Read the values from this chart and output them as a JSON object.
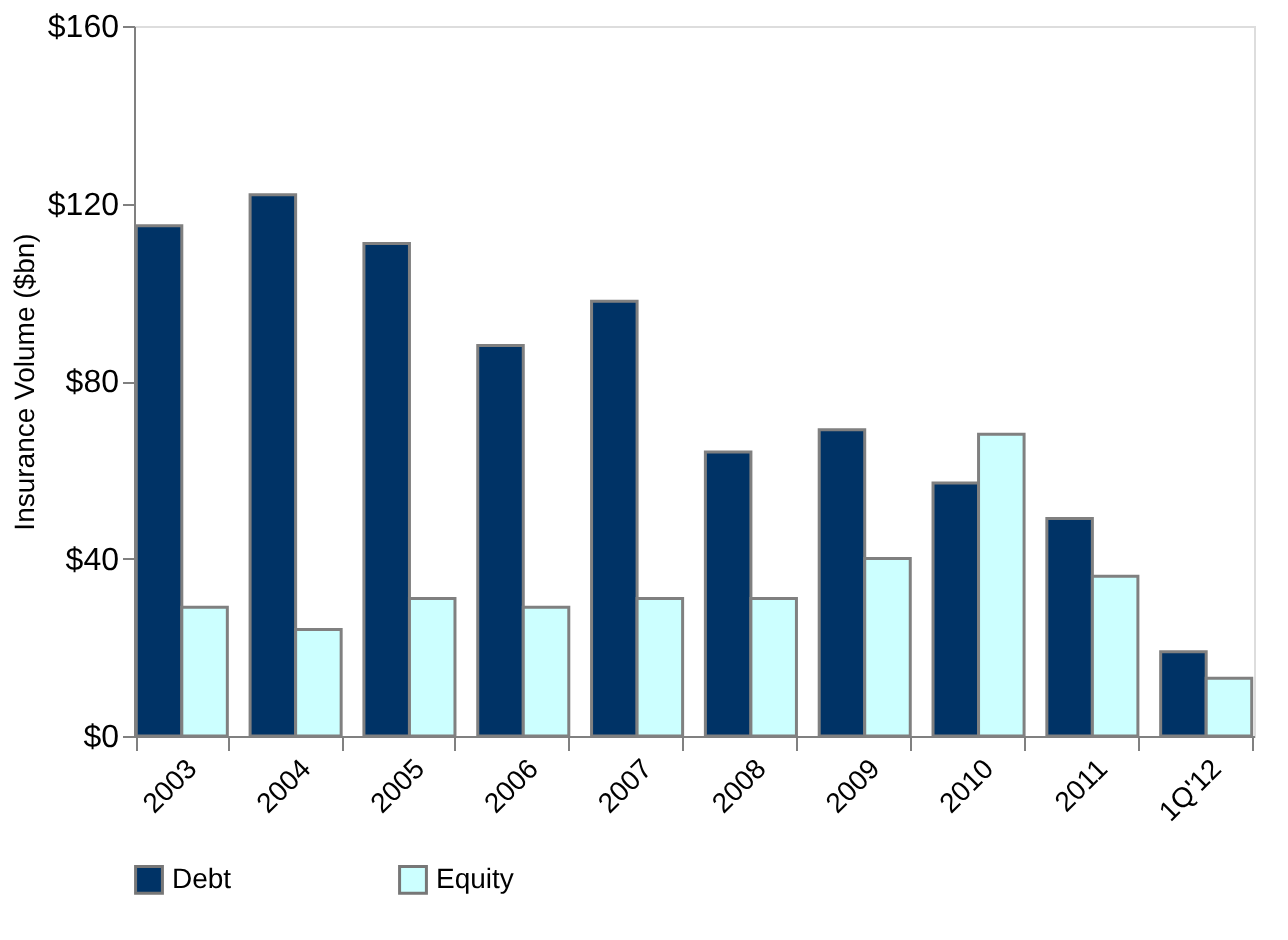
{
  "chart_data": {
    "type": "bar",
    "ylabel": "Insurance Volume ($bn)",
    "categories": [
      "2003",
      "2004",
      "2005",
      "2006",
      "2007",
      "2008",
      "2009",
      "2010",
      "2011",
      "1Q'12"
    ],
    "series": [
      {
        "name": "Debt",
        "color": "#003366",
        "values": [
          115,
          122,
          111,
          88,
          98,
          64,
          69,
          57,
          49,
          19
        ]
      },
      {
        "name": "Equity",
        "color": "#ccffff",
        "values": [
          29,
          24,
          31,
          29,
          31,
          31,
          40,
          68,
          36,
          13
        ]
      }
    ],
    "ylim": [
      0,
      160
    ],
    "yticks": [
      {
        "value": 0,
        "label": "$0"
      },
      {
        "value": 40,
        "label": "$40"
      },
      {
        "value": 80,
        "label": "$80"
      },
      {
        "value": 120,
        "label": "$120"
      },
      {
        "value": 160,
        "label": "$160"
      }
    ],
    "grid": false,
    "legend": "bottom"
  }
}
